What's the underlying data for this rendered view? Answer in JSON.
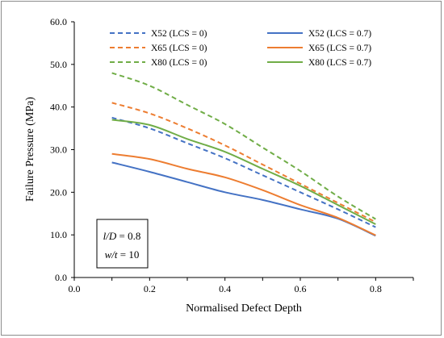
{
  "chart_data": {
    "type": "line",
    "xlabel": "Normalised Defect Depth",
    "ylabel": "Failure Pressure (MPa)",
    "xlim": [
      0.0,
      0.9
    ],
    "ylim": [
      0.0,
      60.0
    ],
    "x_ticks": [
      "0.0",
      "0.2",
      "0.4",
      "0.6",
      "0.8"
    ],
    "y_ticks": [
      "0.0",
      "10.0",
      "20.0",
      "30.0",
      "40.0",
      "50.0",
      "60.0"
    ],
    "grid": false,
    "legend_position": "top",
    "series": [
      {
        "name": "X52 (LCS = 0)",
        "color": "#4472c4",
        "dash": true,
        "x": [
          0.1,
          0.2,
          0.3,
          0.4,
          0.5,
          0.6,
          0.7,
          0.8
        ],
        "y": [
          37.5,
          35.0,
          31.5,
          28.0,
          24.0,
          20.0,
          16.0,
          11.8
        ]
      },
      {
        "name": "X52 (LCS = 0.7)",
        "color": "#4472c4",
        "dash": false,
        "x": [
          0.1,
          0.2,
          0.3,
          0.4,
          0.5,
          0.6,
          0.7,
          0.8
        ],
        "y": [
          27.0,
          24.8,
          22.4,
          20.0,
          18.2,
          16.0,
          13.8,
          9.8
        ]
      },
      {
        "name": "X65 (LCS = 0)",
        "color": "#ed7d31",
        "dash": true,
        "x": [
          0.1,
          0.2,
          0.3,
          0.4,
          0.5,
          0.6,
          0.7,
          0.8
        ],
        "y": [
          41.0,
          38.5,
          35.0,
          31.0,
          26.5,
          22.0,
          17.5,
          13.0
        ]
      },
      {
        "name": "X65 (LCS = 0.7)",
        "color": "#ed7d31",
        "dash": false,
        "x": [
          0.1,
          0.2,
          0.3,
          0.4,
          0.5,
          0.6,
          0.7,
          0.8
        ],
        "y": [
          29.0,
          27.8,
          25.5,
          23.5,
          20.5,
          17.0,
          14.0,
          9.9
        ]
      },
      {
        "name": "X80 (LCS = 0)",
        "color": "#70ad47",
        "dash": true,
        "x": [
          0.1,
          0.2,
          0.3,
          0.4,
          0.5,
          0.6,
          0.7,
          0.8
        ],
        "y": [
          48.0,
          45.0,
          40.5,
          36.0,
          30.5,
          25.0,
          19.0,
          13.7
        ]
      },
      {
        "name": "X80 (LCS = 0.7)",
        "color": "#70ad47",
        "dash": false,
        "x": [
          0.1,
          0.2,
          0.3,
          0.4,
          0.5,
          0.6,
          0.7,
          0.8
        ],
        "y": [
          37.0,
          35.8,
          32.5,
          29.5,
          25.5,
          21.5,
          17.0,
          12.5
        ]
      }
    ],
    "annotation": {
      "line1_var": "l/D",
      "line1_value": " = 0.8",
      "line2_var": "w/t",
      "line2_value": " = 10"
    }
  }
}
